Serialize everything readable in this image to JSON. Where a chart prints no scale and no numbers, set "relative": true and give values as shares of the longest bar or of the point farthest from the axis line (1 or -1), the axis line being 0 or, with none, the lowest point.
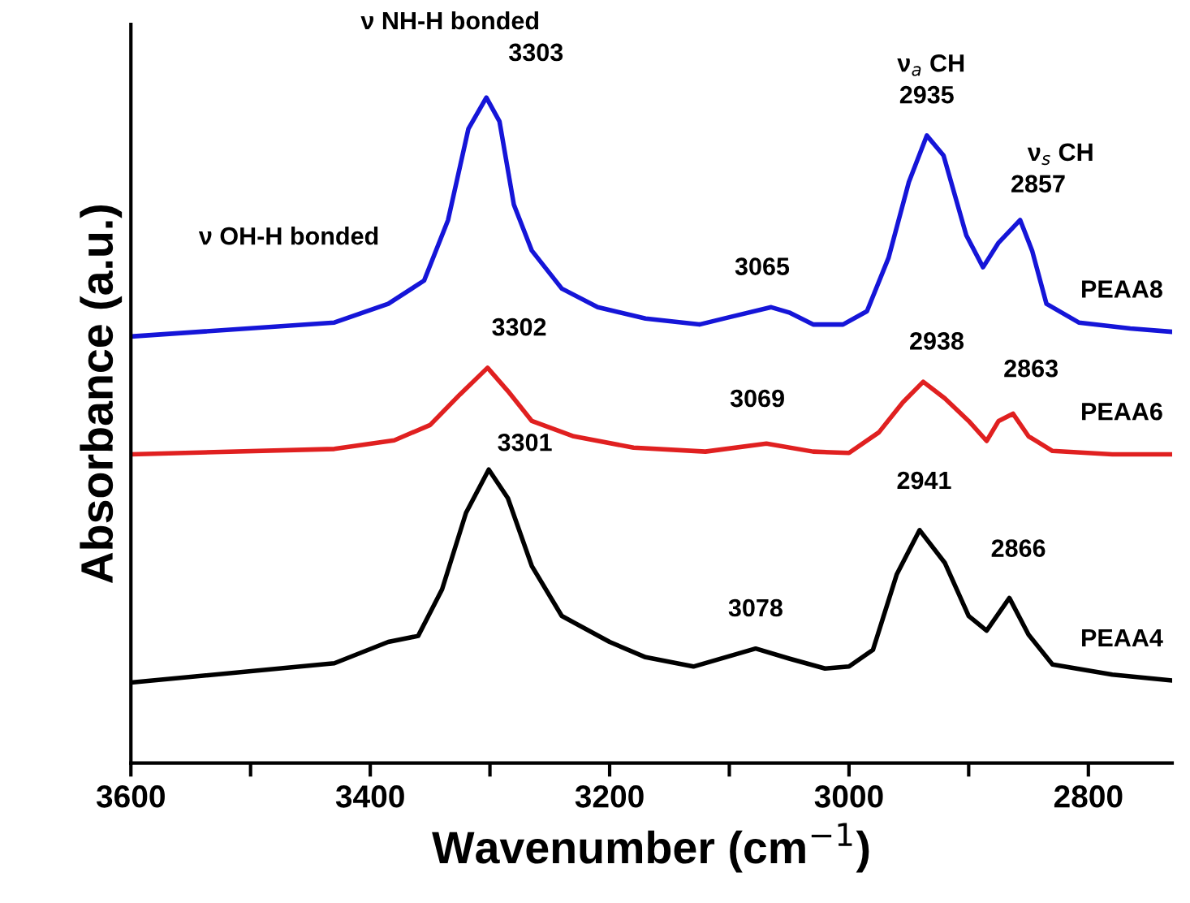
{
  "chart_data": {
    "type": "line",
    "relative": true,
    "xlabel": "Wavenumber (cm$^{−1}$)",
    "ylabel": "Absorbance (a.u.)",
    "xlim": [
      3600,
      2730
    ],
    "xticks": [
      3600,
      {
        "value": 3500,
        "label": null
      },
      3400,
      {
        "value": 3300,
        "label": null
      },
      3200,
      {
        "value": 3100,
        "label": null
      },
      3000,
      {
        "value": 2900,
        "label": null
      },
      2800
    ],
    "grid": false,
    "marker": "none",
    "line_style": "solid",
    "series": [
      {
        "name": "PEAA8",
        "color": "#1515d8",
        "x": [
          3600,
          3430,
          3385,
          3355,
          3335,
          3318,
          3303,
          3292,
          3280,
          3265,
          3240,
          3210,
          3170,
          3125,
          3100,
          3065,
          3050,
          3030,
          3005,
          2985,
          2967,
          2950,
          2935,
          2921,
          2902,
          2888,
          2875,
          2857,
          2847,
          2835,
          2808,
          2765,
          2730
        ],
        "values": [
          0.641,
          0.662,
          0.69,
          0.725,
          0.816,
          0.953,
          1.0,
          0.964,
          0.839,
          0.77,
          0.713,
          0.685,
          0.668,
          0.659,
          0.67,
          0.685,
          0.677,
          0.659,
          0.659,
          0.679,
          0.759,
          0.873,
          0.943,
          0.913,
          0.793,
          0.745,
          0.782,
          0.816,
          0.77,
          0.69,
          0.662,
          0.653,
          0.648
        ]
      },
      {
        "name": "PEAA6",
        "color": "#e02020",
        "x": [
          3600,
          3430,
          3380,
          3350,
          3325,
          3302,
          3285,
          3265,
          3230,
          3180,
          3120,
          3069,
          3030,
          3000,
          2975,
          2955,
          2938,
          2920,
          2900,
          2885,
          2875,
          2863,
          2850,
          2830,
          2780,
          2730
        ],
        "values": [
          0.464,
          0.472,
          0.485,
          0.508,
          0.554,
          0.594,
          0.559,
          0.514,
          0.491,
          0.474,
          0.468,
          0.48,
          0.468,
          0.466,
          0.497,
          0.542,
          0.573,
          0.548,
          0.514,
          0.484,
          0.514,
          0.525,
          0.491,
          0.469,
          0.464,
          0.464
        ]
      },
      {
        "name": "PEAA4",
        "color": "#000000",
        "x": [
          3600,
          3430,
          3385,
          3360,
          3340,
          3320,
          3301,
          3285,
          3265,
          3240,
          3200,
          3170,
          3130,
          3078,
          3050,
          3020,
          3000,
          2980,
          2960,
          2941,
          2920,
          2900,
          2885,
          2866,
          2850,
          2830,
          2780,
          2730
        ],
        "values": [
          0.121,
          0.15,
          0.182,
          0.191,
          0.261,
          0.376,
          0.441,
          0.398,
          0.296,
          0.221,
          0.182,
          0.159,
          0.145,
          0.172,
          0.157,
          0.142,
          0.145,
          0.17,
          0.284,
          0.35,
          0.301,
          0.221,
          0.199,
          0.248,
          0.193,
          0.148,
          0.133,
          0.124
        ]
      }
    ],
    "annotations": [
      {
        "text": "3303",
        "x": 3303,
        "y": 1.0
      },
      {
        "text": "3065",
        "x": 3065,
        "y": 0.685
      },
      {
        "text": "2935",
        "x": 2935,
        "y": 0.943
      },
      {
        "text": "2857",
        "x": 2857,
        "y": 0.816
      },
      {
        "text": "3302",
        "x": 3302,
        "y": 0.594
      },
      {
        "text": "3069",
        "x": 3069,
        "y": 0.48
      },
      {
        "text": "2938",
        "x": 2938,
        "y": 0.573
      },
      {
        "text": "2863",
        "x": 2863,
        "y": 0.525
      },
      {
        "text": "3301",
        "x": 3301,
        "y": 0.441
      },
      {
        "text": "3078",
        "x": 3078,
        "y": 0.172
      },
      {
        "text": "2941",
        "x": 2941,
        "y": 0.35
      },
      {
        "text": "2866",
        "x": 2866,
        "y": 0.248
      },
      {
        "text": "ν NH-H bonded",
        "x": 3303,
        "y": 1.0
      },
      {
        "text": "ν OH-H bonded",
        "x": 3385,
        "y": 0.69
      },
      {
        "text": "ν$_{a}$ CH",
        "x": 2935,
        "y": 0.943
      },
      {
        "text": "ν$_{s}$ CH",
        "x": 2857,
        "y": 0.816
      }
    ]
  }
}
